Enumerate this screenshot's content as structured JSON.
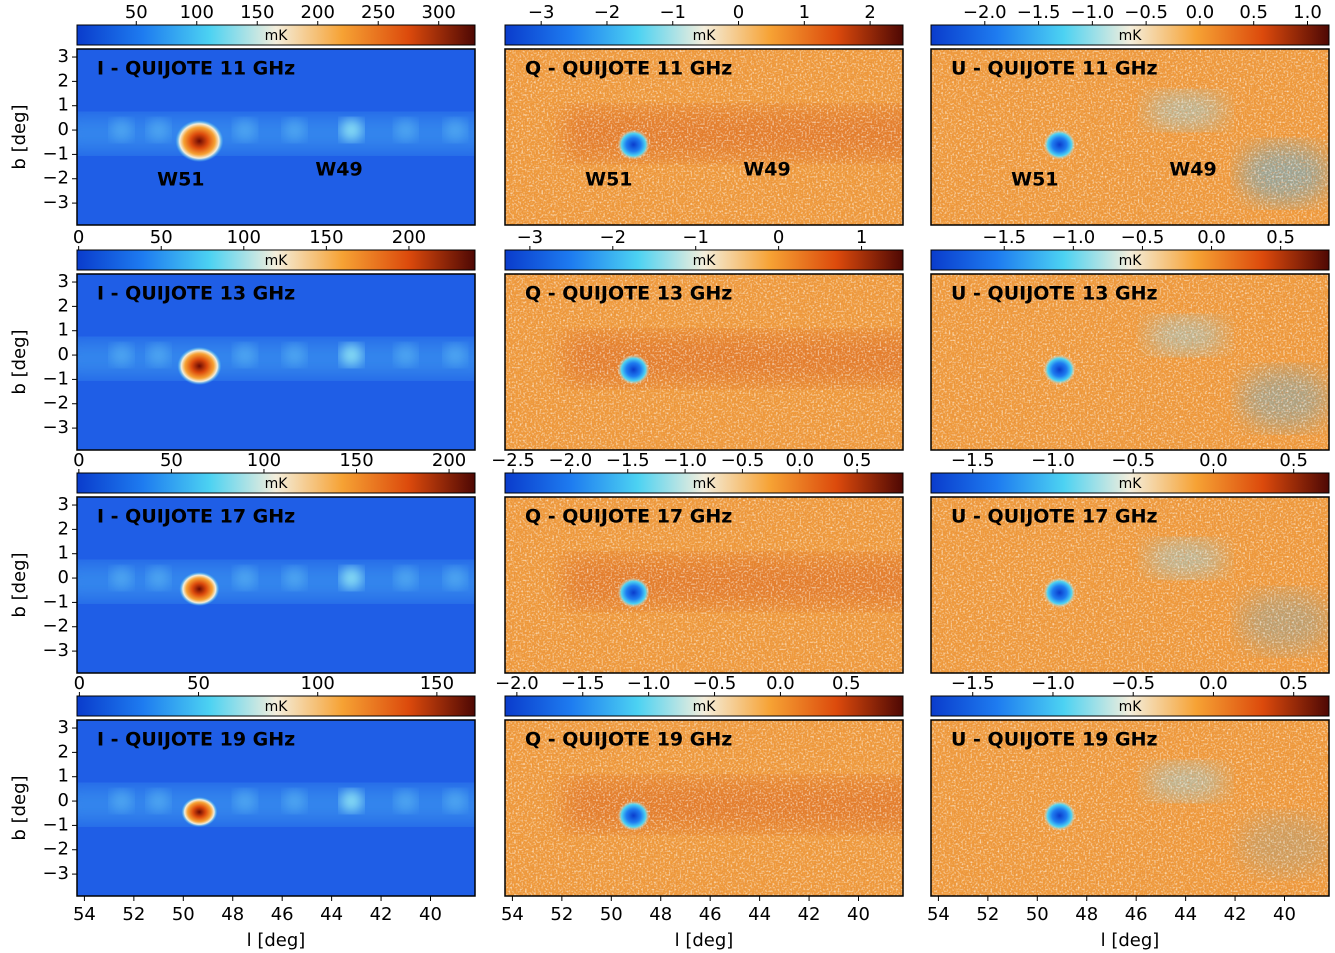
{
  "chart_data": [
    {
      "type": "heatmap",
      "title": "I - QUIJOTE 11 GHz",
      "colorbar_label": "mK",
      "clim": [
        1,
        330
      ],
      "cticks": [
        50,
        100,
        150,
        200,
        250,
        300
      ],
      "colormap": [
        "#0a3ccc",
        "#1e7cf0",
        "#4cd2f2",
        "#f4eedc",
        "#f6a234",
        "#dc4a0c",
        "#4e0804"
      ],
      "xlim": [
        54.3,
        38.2
      ],
      "ylim": [
        -3.9,
        3.33
      ],
      "annotations": [
        {
          "text": "W51",
          "l": 50.1,
          "b": -2.06
        },
        {
          "text": "W49",
          "l": 43.7,
          "b": -1.65
        }
      ],
      "ylabel": "b [deg]",
      "yticks": [
        {
          "value": -3,
          "label": "−3"
        },
        {
          "value": -2,
          "label": "−2"
        },
        {
          "value": -1,
          "label": "−1"
        },
        0,
        1,
        2,
        3
      ]
    },
    {
      "type": "heatmap",
      "title": "Q - QUIJOTE 11 GHz",
      "colorbar_label": "mK",
      "clim": [
        -3.55,
        2.5
      ],
      "cticks": [
        {
          "value": -3,
          "label": "−3"
        },
        {
          "value": -2,
          "label": "−2"
        },
        {
          "value": -1,
          "label": "−1"
        },
        0,
        1,
        2
      ],
      "colormap": [
        "#0a3ccc",
        "#1e7cf0",
        "#4cd2f2",
        "#f4eedc",
        "#f6a234",
        "#dc4a0c",
        "#4e0804"
      ],
      "xlim": [
        54.3,
        38.2
      ],
      "ylim": [
        -3.9,
        3.33
      ],
      "annotations": [
        {
          "text": "W51",
          "l": 50.1,
          "b": -2.06
        },
        {
          "text": "W49",
          "l": 43.7,
          "b": -1.65
        }
      ]
    },
    {
      "type": "heatmap",
      "title": "U - QUIJOTE 11 GHz",
      "colorbar_label": "mK",
      "clim": [
        -2.5,
        1.2
      ],
      "cticks": [
        {
          "value": -2,
          "label": "−2.0"
        },
        {
          "value": -1.5,
          "label": "−1.5"
        },
        {
          "value": -1,
          "label": "−1.0"
        },
        {
          "value": -0.5,
          "label": "−0.5"
        },
        {
          "value": 0,
          "label": "0.0"
        },
        0.5,
        {
          "value": 1,
          "label": "1.0"
        }
      ],
      "colormap": [
        "#0a3ccc",
        "#1e7cf0",
        "#4cd2f2",
        "#f4eedc",
        "#f6a234",
        "#dc4a0c",
        "#4e0804"
      ],
      "xlim": [
        54.3,
        38.2
      ],
      "ylim": [
        -3.9,
        3.33
      ],
      "annotations": [
        {
          "text": "W51",
          "l": 50.1,
          "b": -2.06
        },
        {
          "text": "W49",
          "l": 43.7,
          "b": -1.65
        }
      ]
    },
    {
      "type": "heatmap",
      "title": "I - QUIJOTE 13 GHz",
      "colorbar_label": "mK",
      "clim": [
        -1,
        240
      ],
      "cticks": [
        0,
        50,
        100,
        150,
        200
      ],
      "colormap": [
        "#0a3ccc",
        "#1e7cf0",
        "#4cd2f2",
        "#f4eedc",
        "#f6a234",
        "#dc4a0c",
        "#4e0804"
      ],
      "xlim": [
        54.3,
        38.2
      ],
      "ylim": [
        -3.9,
        3.33
      ],
      "ylabel": "b [deg]",
      "yticks": [
        {
          "value": -3,
          "label": "−3"
        },
        {
          "value": -2,
          "label": "−2"
        },
        {
          "value": -1,
          "label": "−1"
        },
        0,
        1,
        2,
        3
      ]
    },
    {
      "type": "heatmap",
      "title": "Q - QUIJOTE 13 GHz",
      "colorbar_label": "mK",
      "clim": [
        -3.3,
        1.5
      ],
      "cticks": [
        {
          "value": -3,
          "label": "−3"
        },
        {
          "value": -2,
          "label": "−2"
        },
        {
          "value": -1,
          "label": "−1"
        },
        0,
        1
      ],
      "colormap": [
        "#0a3ccc",
        "#1e7cf0",
        "#4cd2f2",
        "#f4eedc",
        "#f6a234",
        "#dc4a0c",
        "#4e0804"
      ],
      "xlim": [
        54.3,
        38.2
      ],
      "ylim": [
        -3.9,
        3.33
      ]
    },
    {
      "type": "heatmap",
      "title": "U - QUIJOTE 13 GHz",
      "colorbar_label": "mK",
      "clim": [
        -2.03,
        0.85
      ],
      "cticks": [
        {
          "value": -1.5,
          "label": "−1.5"
        },
        {
          "value": -1,
          "label": "−1.0"
        },
        {
          "value": -0.5,
          "label": "−0.5"
        },
        {
          "value": 0,
          "label": "0.0"
        },
        0.5
      ],
      "colormap": [
        "#0a3ccc",
        "#1e7cf0",
        "#4cd2f2",
        "#f4eedc",
        "#f6a234",
        "#dc4a0c",
        "#4e0804"
      ],
      "xlim": [
        54.3,
        38.2
      ],
      "ylim": [
        -3.9,
        3.33
      ]
    },
    {
      "type": "heatmap",
      "title": "I - QUIJOTE 17 GHz",
      "colorbar_label": "mK",
      "clim": [
        -1,
        214
      ],
      "cticks": [
        0,
        50,
        100,
        150,
        200
      ],
      "colormap": [
        "#0a3ccc",
        "#1e7cf0",
        "#4cd2f2",
        "#f4eedc",
        "#f6a234",
        "#dc4a0c",
        "#4e0804"
      ],
      "xlim": [
        54.3,
        38.2
      ],
      "ylim": [
        -3.9,
        3.33
      ],
      "ylabel": "b [deg]",
      "yticks": [
        {
          "value": -3,
          "label": "−3"
        },
        {
          "value": -2,
          "label": "−2"
        },
        {
          "value": -1,
          "label": "−1"
        },
        0,
        1,
        2,
        3
      ]
    },
    {
      "type": "heatmap",
      "title": "Q - QUIJOTE 17 GHz",
      "colorbar_label": "mK",
      "clim": [
        -2.57,
        0.9
      ],
      "cticks": [
        {
          "value": -2.5,
          "label": "−2.5"
        },
        {
          "value": -2,
          "label": "−2.0"
        },
        {
          "value": -1.5,
          "label": "−1.5"
        },
        {
          "value": -1,
          "label": "−1.0"
        },
        {
          "value": -0.5,
          "label": "−0.5"
        },
        {
          "value": 0,
          "label": "0.0"
        },
        0.5
      ],
      "colormap": [
        "#0a3ccc",
        "#1e7cf0",
        "#4cd2f2",
        "#f4eedc",
        "#f6a234",
        "#dc4a0c",
        "#4e0804"
      ],
      "xlim": [
        54.3,
        38.2
      ],
      "ylim": [
        -3.9,
        3.33
      ]
    },
    {
      "type": "heatmap",
      "title": "U - QUIJOTE 17 GHz",
      "colorbar_label": "mK",
      "clim": [
        -1.76,
        0.72
      ],
      "cticks": [
        {
          "value": -1.5,
          "label": "−1.5"
        },
        {
          "value": -1,
          "label": "−1.0"
        },
        {
          "value": -0.5,
          "label": "−0.5"
        },
        {
          "value": 0,
          "label": "0.0"
        },
        0.5
      ],
      "colormap": [
        "#0a3ccc",
        "#1e7cf0",
        "#4cd2f2",
        "#f4eedc",
        "#f6a234",
        "#dc4a0c",
        "#4e0804"
      ],
      "xlim": [
        54.3,
        38.2
      ],
      "ylim": [
        -3.9,
        3.33
      ]
    },
    {
      "type": "heatmap",
      "title": "I - QUIJOTE 19 GHz",
      "colorbar_label": "mK",
      "clim": [
        -1,
        166
      ],
      "cticks": [
        0,
        50,
        100,
        150
      ],
      "colormap": [
        "#0a3ccc",
        "#1e7cf0",
        "#4cd2f2",
        "#f4eedc",
        "#f6a234",
        "#dc4a0c",
        "#4e0804"
      ],
      "xlim": [
        54.3,
        38.2
      ],
      "ylim": [
        -3.9,
        3.33
      ],
      "ylabel": "b [deg]",
      "yticks": [
        {
          "value": -3,
          "label": "−3"
        },
        {
          "value": -2,
          "label": "−2"
        },
        {
          "value": -1,
          "label": "−1"
        },
        0,
        1,
        2,
        3
      ],
      "xlabel": "l [deg]",
      "xticks": [
        54,
        52,
        50,
        48,
        46,
        44,
        42,
        40
      ]
    },
    {
      "type": "heatmap",
      "title": "Q - QUIJOTE 19 GHz",
      "colorbar_label": "mK",
      "clim": [
        -2.09,
        0.93
      ],
      "cticks": [
        {
          "value": -2,
          "label": "−2.0"
        },
        {
          "value": -1.5,
          "label": "−1.5"
        },
        {
          "value": -1,
          "label": "−1.0"
        },
        {
          "value": -0.5,
          "label": "−0.5"
        },
        {
          "value": 0,
          "label": "0.0"
        },
        0.5
      ],
      "colormap": [
        "#0a3ccc",
        "#1e7cf0",
        "#4cd2f2",
        "#f4eedc",
        "#f6a234",
        "#dc4a0c",
        "#4e0804"
      ],
      "xlim": [
        54.3,
        38.2
      ],
      "ylim": [
        -3.9,
        3.33
      ],
      "xlabel": "l [deg]",
      "xticks": [
        54,
        52,
        50,
        48,
        46,
        44,
        42,
        40
      ]
    },
    {
      "type": "heatmap",
      "title": "U - QUIJOTE 19 GHz",
      "colorbar_label": "mK",
      "clim": [
        -1.76,
        0.72
      ],
      "cticks": [
        {
          "value": -1.5,
          "label": "−1.5"
        },
        {
          "value": -1,
          "label": "−1.0"
        },
        {
          "value": -0.5,
          "label": "−0.5"
        },
        {
          "value": 0,
          "label": "0.0"
        },
        0.5
      ],
      "colormap": [
        "#0a3ccc",
        "#1e7cf0",
        "#4cd2f2",
        "#f4eedc",
        "#f6a234",
        "#dc4a0c",
        "#4e0804"
      ],
      "xlim": [
        54.3,
        38.2
      ],
      "ylim": [
        -3.9,
        3.33
      ],
      "xlabel": "l [deg]",
      "xticks": [
        54,
        52,
        50,
        48,
        46,
        44,
        42,
        40
      ]
    }
  ]
}
